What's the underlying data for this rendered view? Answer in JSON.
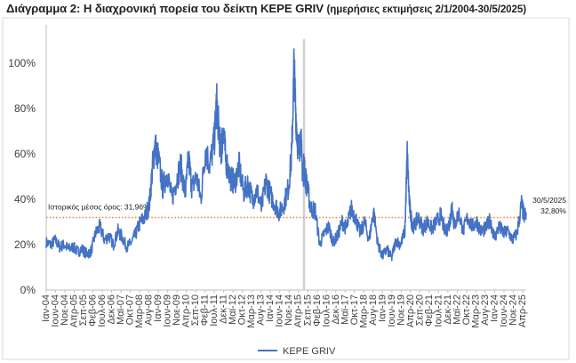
{
  "title": {
    "main": "Διάγραμμα 2: Η διαχρονική πορεία του δείκτη KEPE GRIV",
    "sub": "(ημερήσιες εκτιμήσεις 2/1/2004-30/5/2025)"
  },
  "chart_data": {
    "type": "line",
    "title": "Διάγραμμα 2: Η διαχρονική πορεία του δείκτη KEPE GRIV (ημερήσιες εκτιμήσεις 2/1/2004-30/5/2025)",
    "xlabel": "",
    "ylabel": "",
    "ylim": [
      0,
      120
    ],
    "yticks": [
      "0%",
      "20%",
      "40%",
      "60%",
      "80%",
      "100%"
    ],
    "ytick_values": [
      0,
      20,
      40,
      60,
      80,
      100
    ],
    "xticks": [
      "Ιαν-04",
      "Ιουν-04",
      "Νοε-04",
      "Απρ-05",
      "Σεπ-05",
      "Φεβ-06",
      "Ιουλ-06",
      "Δεκ-06",
      "Μαϊ-07",
      "Οκτ-07",
      "Μαρ-08",
      "Αυγ-08",
      "Ιαν-09",
      "Ιουν-09",
      "Νοε-09",
      "Απρ-10",
      "Σεπ-10",
      "Φεβ-11",
      "Ιουλ-11",
      "Δεκ-11",
      "Μαϊ-12",
      "Οκτ-12",
      "Μαρ-13",
      "Αυγ-13",
      "Ιαν-14",
      "Ιουν-14",
      "Νοε-14",
      "Απρ-15",
      "Σεπ-15",
      "Φεβ-16",
      "Ιουλ-16",
      "Δεκ-16",
      "Μαϊ-17",
      "Οκτ-17",
      "Μαρ-18",
      "Αυγ-18",
      "Ιαν-19",
      "Ιουν-19",
      "Νοε-19",
      "Απρ-20",
      "Σεπ-20",
      "Φεβ-21",
      "Ιουλ-21",
      "Δεκ-21",
      "Μαϊ-22",
      "Οκτ-22",
      "Μαρ-23",
      "Αυγ-23",
      "Ιαν-24",
      "Ιουν-24",
      "Νοε-24",
      "Απρ-25"
    ],
    "series": [
      {
        "name": "KEPE GRIV",
        "color": "#4472c4",
        "x": [
          2004.0,
          2004.2,
          2004.4,
          2004.6,
          2004.8,
          2005.0,
          2005.2,
          2005.4,
          2005.6,
          2005.8,
          2006.0,
          2006.2,
          2006.4,
          2006.6,
          2006.8,
          2007.0,
          2007.2,
          2007.4,
          2007.6,
          2007.8,
          2008.0,
          2008.2,
          2008.4,
          2008.6,
          2008.75,
          2008.85,
          2009.0,
          2009.2,
          2009.4,
          2009.6,
          2009.8,
          2010.0,
          2010.2,
          2010.35,
          2010.5,
          2010.7,
          2010.9,
          2011.1,
          2011.3,
          2011.5,
          2011.6,
          2011.7,
          2011.8,
          2011.9,
          2012.0,
          2012.2,
          2012.4,
          2012.6,
          2012.8,
          2013.0,
          2013.2,
          2013.4,
          2013.6,
          2013.8,
          2014.0,
          2014.2,
          2014.4,
          2014.6,
          2014.8,
          2014.95,
          2015.05,
          2015.15,
          2015.25,
          2015.35,
          2015.45,
          2015.5,
          2015.55,
          2015.65,
          2015.8,
          2016.0,
          2016.2,
          2016.4,
          2016.6,
          2016.8,
          2017.0,
          2017.2,
          2017.4,
          2017.6,
          2017.8,
          2018.0,
          2018.2,
          2018.4,
          2018.6,
          2018.8,
          2019.0,
          2019.2,
          2019.4,
          2019.6,
          2019.8,
          2020.0,
          2020.1,
          2020.2,
          2020.3,
          2020.4,
          2020.6,
          2020.8,
          2021.0,
          2021.2,
          2021.4,
          2021.6,
          2021.8,
          2022.0,
          2022.1,
          2022.2,
          2022.4,
          2022.6,
          2022.8,
          2023.0,
          2023.2,
          2023.4,
          2023.6,
          2023.8,
          2024.0,
          2024.2,
          2024.4,
          2024.6,
          2024.8,
          2025.0,
          2025.2,
          2025.3,
          2025.41
        ],
        "values": [
          21,
          20,
          22,
          19,
          20,
          18,
          19,
          17,
          18,
          16,
          17,
          25,
          28,
          22,
          24,
          20,
          26,
          23,
          19,
          21,
          25,
          30,
          32,
          38,
          55,
          64,
          58,
          45,
          52,
          40,
          48,
          55,
          42,
          58,
          45,
          50,
          40,
          62,
          55,
          66,
          83,
          70,
          60,
          72,
          58,
          50,
          47,
          55,
          43,
          47,
          40,
          44,
          36,
          48,
          42,
          38,
          34,
          38,
          45,
          60,
          98,
          75,
          60,
          68,
          48,
          56,
          50,
          45,
          36,
          35,
          20,
          25,
          28,
          21,
          24,
          30,
          27,
          36,
          32,
          25,
          30,
          22,
          35,
          20,
          15,
          18,
          14,
          22,
          20,
          26,
          60,
          38,
          30,
          28,
          32,
          27,
          30,
          27,
          30,
          33,
          25,
          30,
          38,
          28,
          34,
          26,
          32,
          28,
          30,
          26,
          27,
          31,
          23,
          28,
          25,
          26,
          22,
          25,
          38,
          33,
          32.8
        ]
      }
    ],
    "reference_line": {
      "label": "Ιστορικός μέσος όρος: 31,96%",
      "value": 31.96,
      "color": "#ed7d31",
      "style": "dotted"
    },
    "vertical_marker": {
      "x": 2015.5,
      "color": "#d0d0d0"
    },
    "annotations": [
      {
        "date": "30/5/2025",
        "value_label": "32,80%"
      }
    ],
    "grid": false,
    "legend_position": "bottom-center"
  }
}
